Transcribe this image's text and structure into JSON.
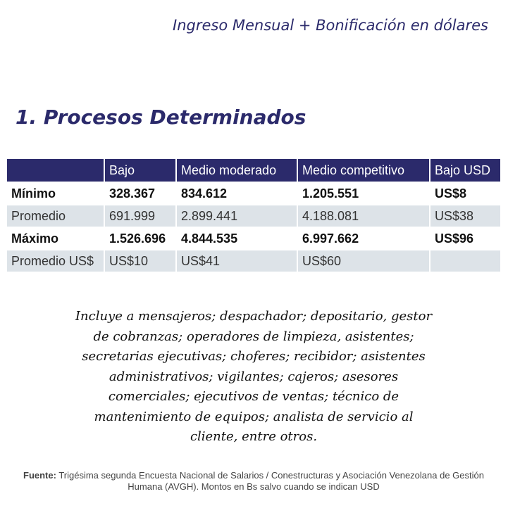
{
  "header": {
    "title": "Ingreso Mensual + Bonificación en dólares"
  },
  "section": {
    "title": "1. Procesos Determinados"
  },
  "table": {
    "columns": [
      "",
      "Bajo",
      "Medio moderado",
      "Medio competitivo",
      "Bajo USD"
    ],
    "rows": [
      {
        "label": "Mínimo",
        "cells": [
          "328.367",
          "834.612",
          "1.205.551",
          "US$8"
        ]
      },
      {
        "label": "Promedio",
        "cells": [
          "691.999",
          "2.899.441",
          "4.188.081",
          "US$38"
        ]
      },
      {
        "label": "Máximo",
        "cells": [
          "1.526.696",
          "4.844.535",
          "6.997.662",
          "US$96"
        ]
      },
      {
        "label": "Promedio US$",
        "cells": [
          "US$10",
          "US$41",
          "US$60",
          ""
        ]
      }
    ]
  },
  "description": {
    "lines": [
      "Incluye a mensajeros; despachador; depositario, gestor",
      "de cobranzas; operadores de limpieza, asistentes;",
      "secretarias ejecutivas; choferes; recibidor; asistentes",
      "administrativos; vigilantes; cajeros; asesores",
      "comerciales; ejecutivos de ventas; técnico de",
      "mantenimiento de equipos; analista de servicio al",
      "cliente, entre otros."
    ]
  },
  "footer": {
    "label": "Fuente:",
    "text": " Trigésima segunda Encuesta Nacional de Salarios / Conestructuras y Asociación Venezolana de Gestión Humana (AVGH). Montos en Bs salvo cuando se indican USD"
  }
}
